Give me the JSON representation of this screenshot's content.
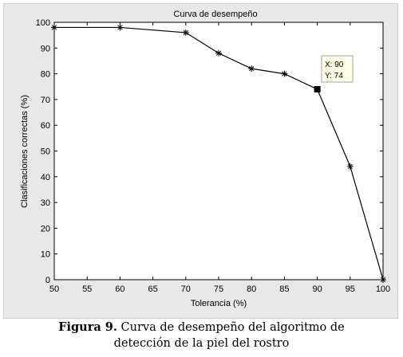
{
  "chart_data": {
    "type": "line",
    "title": "Curva de desempeño",
    "xlabel": "Tolerancia (%)",
    "ylabel": "Clasificaciones correctas (%)",
    "xlim": [
      50,
      100
    ],
    "ylim": [
      0,
      100
    ],
    "xticks": [
      50,
      55,
      60,
      65,
      70,
      75,
      80,
      85,
      90,
      95,
      100
    ],
    "yticks": [
      0,
      10,
      20,
      30,
      40,
      50,
      60,
      70,
      80,
      90,
      100
    ],
    "grid": false,
    "marker": "star",
    "color": "#000000",
    "series": [
      {
        "x": [
          50,
          60,
          70,
          75,
          80,
          85,
          90,
          95,
          100
        ],
        "y": [
          98,
          98,
          96,
          88,
          82,
          80,
          74,
          44,
          0
        ]
      }
    ],
    "datatip": {
      "x_text": "X: 90",
      "y_text": "Y: 74",
      "point": [
        90,
        74
      ]
    }
  },
  "caption": {
    "label": "Figura 9.",
    "text": "Curva de desempeño del algoritmo de",
    "text2": "detección de la piel del rostro"
  }
}
